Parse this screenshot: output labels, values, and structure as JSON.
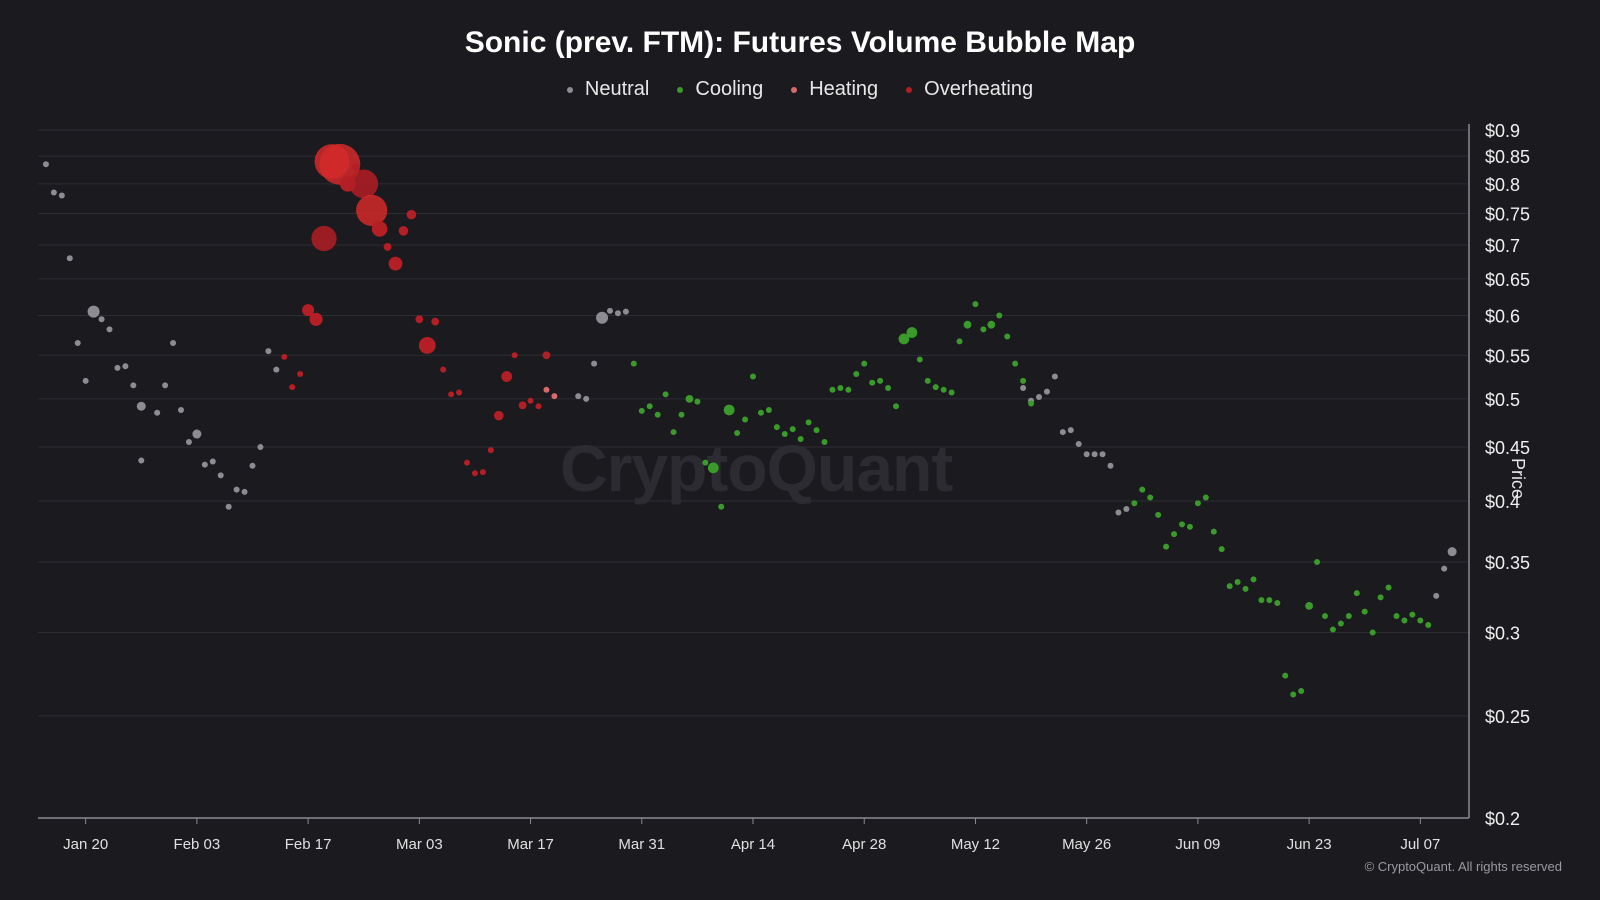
{
  "chart_data": {
    "type": "scatter",
    "title": "Sonic (prev. FTM): Futures Volume Bubble Map",
    "ylabel": "Price",
    "yscale": "log",
    "ylim": [
      0.2,
      0.9
    ],
    "y_ticks": [
      {
        "v": 0.9,
        "label": "$0.9"
      },
      {
        "v": 0.85,
        "label": "$0.85"
      },
      {
        "v": 0.8,
        "label": "$0.8"
      },
      {
        "v": 0.75,
        "label": "$0.75"
      },
      {
        "v": 0.7,
        "label": "$0.7"
      },
      {
        "v": 0.65,
        "label": "$0.65"
      },
      {
        "v": 0.6,
        "label": "$0.6"
      },
      {
        "v": 0.55,
        "label": "$0.55"
      },
      {
        "v": 0.5,
        "label": "$0.5"
      },
      {
        "v": 0.45,
        "label": "$0.45"
      },
      {
        "v": 0.4,
        "label": "$0.4"
      },
      {
        "v": 0.35,
        "label": "$0.35"
      },
      {
        "v": 0.3,
        "label": "$0.3"
      },
      {
        "v": 0.25,
        "label": "$0.25"
      },
      {
        "v": 0.2,
        "label": "$0.2"
      }
    ],
    "xlim": [
      "2025-01-14",
      "2025-07-13"
    ],
    "x_ticks": [
      {
        "date": "2025-01-20",
        "label": "Jan 20"
      },
      {
        "date": "2025-02-03",
        "label": "Feb 03"
      },
      {
        "date": "2025-02-17",
        "label": "Feb 17"
      },
      {
        "date": "2025-03-03",
        "label": "Mar 03"
      },
      {
        "date": "2025-03-17",
        "label": "Mar 17"
      },
      {
        "date": "2025-03-31",
        "label": "Mar 31"
      },
      {
        "date": "2025-04-14",
        "label": "Apr 14"
      },
      {
        "date": "2025-04-28",
        "label": "Apr 28"
      },
      {
        "date": "2025-05-12",
        "label": "May 12"
      },
      {
        "date": "2025-05-26",
        "label": "May 26"
      },
      {
        "date": "2025-06-09",
        "label": "Jun 09"
      },
      {
        "date": "2025-06-23",
        "label": "Jun 23"
      },
      {
        "date": "2025-07-07",
        "label": "Jul 07"
      }
    ],
    "grid": true,
    "legend_position": "top-center",
    "series": [
      {
        "name": "Neutral",
        "color": "#8c8c92",
        "points": [
          [
            "2025-01-15",
            0.835,
            1
          ],
          [
            "2025-01-16",
            0.785,
            1
          ],
          [
            "2025-01-17",
            0.78,
            1
          ],
          [
            "2025-01-18",
            0.68,
            1
          ],
          [
            "2025-01-19",
            0.565,
            1
          ],
          [
            "2025-01-20",
            0.52,
            1
          ],
          [
            "2025-01-21",
            0.605,
            2
          ],
          [
            "2025-01-22",
            0.595,
            1
          ],
          [
            "2025-01-23",
            0.582,
            1
          ],
          [
            "2025-01-24",
            0.535,
            1
          ],
          [
            "2025-01-25",
            0.537,
            1
          ],
          [
            "2025-01-26",
            0.515,
            1
          ],
          [
            "2025-01-27",
            0.492,
            1.5
          ],
          [
            "2025-01-29",
            0.485,
            1
          ],
          [
            "2025-01-30",
            0.515,
            1
          ],
          [
            "2025-01-31",
            0.565,
            1
          ],
          [
            "2025-02-01",
            0.488,
            1
          ],
          [
            "2025-02-02",
            0.455,
            1
          ],
          [
            "2025-02-03",
            0.463,
            1.5
          ],
          [
            "2025-02-04",
            0.433,
            1
          ],
          [
            "2025-02-05",
            0.436,
            1
          ],
          [
            "2025-02-06",
            0.423,
            1
          ],
          [
            "2025-02-07",
            0.395,
            1
          ],
          [
            "2025-02-08",
            0.41,
            1
          ],
          [
            "2025-02-09",
            0.408,
            1
          ],
          [
            "2025-02-10",
            0.432,
            1
          ],
          [
            "2025-02-11",
            0.45,
            1
          ],
          [
            "2025-02-12",
            0.555,
            1
          ],
          [
            "2025-02-13",
            0.533,
            1
          ],
          [
            "2025-01-27",
            0.437,
            1
          ],
          [
            "2025-03-23",
            0.503,
            1
          ],
          [
            "2025-03-24",
            0.5,
            1
          ],
          [
            "2025-03-25",
            0.54,
            1
          ],
          [
            "2025-03-26",
            0.597,
            2
          ],
          [
            "2025-03-27",
            0.606,
            1
          ],
          [
            "2025-03-28",
            0.603,
            1
          ],
          [
            "2025-03-29",
            0.605,
            1
          ],
          [
            "2025-05-18",
            0.512,
            1
          ],
          [
            "2025-05-19",
            0.498,
            1
          ],
          [
            "2025-05-20",
            0.502,
            1
          ],
          [
            "2025-05-21",
            0.508,
            1
          ],
          [
            "2025-05-22",
            0.525,
            1
          ],
          [
            "2025-05-23",
            0.465,
            1
          ],
          [
            "2025-05-24",
            0.467,
            1
          ],
          [
            "2025-05-25",
            0.453,
            1
          ],
          [
            "2025-05-26",
            0.443,
            1
          ],
          [
            "2025-05-27",
            0.443,
            1
          ],
          [
            "2025-05-28",
            0.443,
            1
          ],
          [
            "2025-05-29",
            0.432,
            1
          ],
          [
            "2025-05-30",
            0.39,
            1
          ],
          [
            "2025-05-31",
            0.393,
            1
          ],
          [
            "2025-07-09",
            0.325,
            1
          ],
          [
            "2025-07-10",
            0.345,
            1
          ],
          [
            "2025-07-11",
            0.358,
            1.5
          ]
        ]
      },
      {
        "name": "Cooling",
        "color": "#3a9a2a",
        "points": [
          [
            "2025-03-30",
            0.54,
            1
          ],
          [
            "2025-03-31",
            0.487,
            1
          ],
          [
            "2025-04-01",
            0.492,
            1
          ],
          [
            "2025-04-02",
            0.483,
            1
          ],
          [
            "2025-04-03",
            0.505,
            1
          ],
          [
            "2025-04-04",
            0.465,
            1
          ],
          [
            "2025-04-05",
            0.483,
            1
          ],
          [
            "2025-04-06",
            0.5,
            1.3
          ],
          [
            "2025-04-07",
            0.497,
            1
          ],
          [
            "2025-04-08",
            0.435,
            1
          ],
          [
            "2025-04-09",
            0.43,
            1.8
          ],
          [
            "2025-04-10",
            0.395,
            1
          ],
          [
            "2025-04-11",
            0.488,
            1.8
          ],
          [
            "2025-04-12",
            0.464,
            1
          ],
          [
            "2025-04-13",
            0.478,
            1
          ],
          [
            "2025-04-14",
            0.525,
            1
          ],
          [
            "2025-04-15",
            0.485,
            1
          ],
          [
            "2025-04-16",
            0.488,
            1
          ],
          [
            "2025-04-17",
            0.47,
            1
          ],
          [
            "2025-04-18",
            0.463,
            1
          ],
          [
            "2025-04-19",
            0.468,
            1
          ],
          [
            "2025-04-20",
            0.458,
            1
          ],
          [
            "2025-04-21",
            0.475,
            1
          ],
          [
            "2025-04-22",
            0.467,
            1
          ],
          [
            "2025-04-23",
            0.455,
            1
          ],
          [
            "2025-04-24",
            0.51,
            1
          ],
          [
            "2025-04-25",
            0.512,
            1
          ],
          [
            "2025-04-26",
            0.51,
            1
          ],
          [
            "2025-04-27",
            0.528,
            1
          ],
          [
            "2025-04-28",
            0.54,
            1
          ],
          [
            "2025-04-29",
            0.518,
            1
          ],
          [
            "2025-04-30",
            0.52,
            1
          ],
          [
            "2025-05-01",
            0.512,
            1
          ],
          [
            "2025-05-02",
            0.492,
            1
          ],
          [
            "2025-05-03",
            0.57,
            1.8
          ],
          [
            "2025-05-04",
            0.578,
            1.8
          ],
          [
            "2025-05-05",
            0.545,
            1
          ],
          [
            "2025-05-06",
            0.52,
            1
          ],
          [
            "2025-05-07",
            0.513,
            1
          ],
          [
            "2025-05-08",
            0.51,
            1
          ],
          [
            "2025-05-09",
            0.507,
            1
          ],
          [
            "2025-05-10",
            0.567,
            1
          ],
          [
            "2025-05-11",
            0.588,
            1.3
          ],
          [
            "2025-05-12",
            0.615,
            1
          ],
          [
            "2025-05-13",
            0.582,
            1
          ],
          [
            "2025-05-14",
            0.588,
            1.3
          ],
          [
            "2025-05-15",
            0.6,
            1
          ],
          [
            "2025-05-16",
            0.573,
            1
          ],
          [
            "2025-05-17",
            0.54,
            1
          ],
          [
            "2025-05-18",
            0.52,
            1
          ],
          [
            "2025-05-19",
            0.495,
            1
          ],
          [
            "2025-06-01",
            0.398,
            1
          ],
          [
            "2025-06-02",
            0.41,
            1
          ],
          [
            "2025-06-03",
            0.403,
            1
          ],
          [
            "2025-06-04",
            0.388,
            1
          ],
          [
            "2025-06-05",
            0.362,
            1
          ],
          [
            "2025-06-06",
            0.372,
            1
          ],
          [
            "2025-06-07",
            0.38,
            1
          ],
          [
            "2025-06-08",
            0.378,
            1
          ],
          [
            "2025-06-09",
            0.398,
            1
          ],
          [
            "2025-06-10",
            0.403,
            1
          ],
          [
            "2025-06-11",
            0.374,
            1
          ],
          [
            "2025-06-12",
            0.36,
            1
          ],
          [
            "2025-06-13",
            0.332,
            1
          ],
          [
            "2025-06-14",
            0.335,
            1
          ],
          [
            "2025-06-15",
            0.33,
            1
          ],
          [
            "2025-06-16",
            0.337,
            1
          ],
          [
            "2025-06-17",
            0.322,
            1
          ],
          [
            "2025-06-18",
            0.322,
            1
          ],
          [
            "2025-06-19",
            0.32,
            1
          ],
          [
            "2025-06-20",
            0.273,
            1
          ],
          [
            "2025-06-21",
            0.262,
            1
          ],
          [
            "2025-06-22",
            0.264,
            1
          ],
          [
            "2025-06-23",
            0.318,
            1.3
          ],
          [
            "2025-06-24",
            0.35,
            1
          ],
          [
            "2025-06-25",
            0.311,
            1
          ],
          [
            "2025-06-26",
            0.302,
            1
          ],
          [
            "2025-06-27",
            0.306,
            1
          ],
          [
            "2025-06-28",
            0.311,
            1
          ],
          [
            "2025-06-29",
            0.327,
            1
          ],
          [
            "2025-06-30",
            0.314,
            1
          ],
          [
            "2025-07-01",
            0.3,
            1
          ],
          [
            "2025-07-02",
            0.324,
            1
          ],
          [
            "2025-07-03",
            0.331,
            1
          ],
          [
            "2025-07-04",
            0.311,
            1
          ],
          [
            "2025-07-05",
            0.308,
            1
          ],
          [
            "2025-07-06",
            0.312,
            1
          ],
          [
            "2025-07-07",
            0.308,
            1
          ],
          [
            "2025-07-08",
            0.305,
            1
          ]
        ]
      },
      {
        "name": "Heating",
        "color": "#d96a6a",
        "points": [
          [
            "2025-03-19",
            0.51,
            1
          ],
          [
            "2025-03-20",
            0.503,
            1
          ]
        ]
      },
      {
        "name": "Overheating",
        "color": "#b31f24",
        "points": [
          [
            "2025-02-14",
            0.548,
            1
          ],
          [
            "2025-02-15",
            0.513,
            1
          ],
          [
            "2025-02-16",
            0.528,
            1
          ],
          [
            "2025-02-17",
            0.607,
            2
          ],
          [
            "2025-02-18",
            0.595,
            2.2
          ],
          [
            "2025-02-19",
            0.71,
            4.2
          ],
          [
            "2025-02-20",
            0.84,
            5.8
          ],
          [
            "2025-02-21",
            0.835,
            6.8
          ],
          [
            "2025-02-22",
            0.8,
            2.6
          ],
          [
            "2025-02-23",
            0.83,
            1.3
          ],
          [
            "2025-02-24",
            0.8,
            4.8
          ],
          [
            "2025-02-25",
            0.755,
            5.2
          ],
          [
            "2025-02-26",
            0.725,
            2.6
          ],
          [
            "2025-02-27",
            0.697,
            1.3
          ],
          [
            "2025-02-28",
            0.672,
            2.3
          ],
          [
            "2025-03-01",
            0.722,
            1.6
          ],
          [
            "2025-03-02",
            0.748,
            1.6
          ],
          [
            "2025-03-03",
            0.595,
            1.3
          ],
          [
            "2025-03-04",
            0.562,
            2.8
          ],
          [
            "2025-03-05",
            0.592,
            1.3
          ],
          [
            "2025-03-06",
            0.533,
            1
          ],
          [
            "2025-03-07",
            0.505,
            1
          ],
          [
            "2025-03-08",
            0.507,
            1
          ],
          [
            "2025-03-09",
            0.435,
            1
          ],
          [
            "2025-03-10",
            0.425,
            1
          ],
          [
            "2025-03-11",
            0.426,
            1
          ],
          [
            "2025-03-12",
            0.447,
            1
          ],
          [
            "2025-03-13",
            0.482,
            1.6
          ],
          [
            "2025-03-14",
            0.525,
            1.8
          ],
          [
            "2025-03-15",
            0.55,
            1
          ],
          [
            "2025-03-16",
            0.493,
            1.3
          ],
          [
            "2025-03-17",
            0.498,
            1
          ],
          [
            "2025-03-18",
            0.492,
            1
          ],
          [
            "2025-03-19",
            0.55,
            1.3
          ]
        ]
      }
    ]
  },
  "watermark": "CryptoQuant",
  "copyright": "© CryptoQuant. All rights reserved"
}
